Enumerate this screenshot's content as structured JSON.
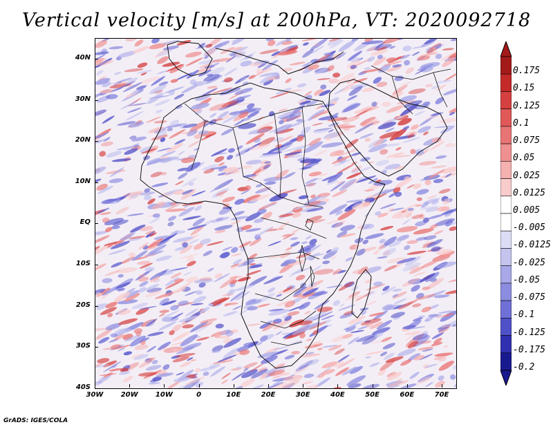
{
  "title": "Vertical velocity [m/s] at 200hPa, VT: 2020092718",
  "credit": "GrADS: IGES/COLA",
  "y_ticks": [
    "40N",
    "30N",
    "20N",
    "10N",
    "EQ",
    "10S",
    "20S",
    "30S",
    "40S"
  ],
  "x_ticks": [
    "30W",
    "20W",
    "10W",
    "0",
    "10E",
    "20E",
    "30E",
    "40E",
    "50E",
    "60E",
    "70E"
  ],
  "colorbar": {
    "levels": [
      "0.175",
      "0.15",
      "0.125",
      "0.1",
      "0.075",
      "0.05",
      "0.025",
      "0.0125",
      "0.005",
      "-0.005",
      "-0.0125",
      "-0.025",
      "-0.05",
      "-0.075",
      "-0.1",
      "-0.125",
      "-0.175",
      "-0.2"
    ],
    "colors": [
      "#a31a1a",
      "#c42a2a",
      "#d54040",
      "#e05858",
      "#e87474",
      "#ef9090",
      "#f5b0b0",
      "#f9cccc",
      "#ffffff",
      "#ffffff",
      "#dcdcf5",
      "#c4c4ef",
      "#a8a8e8",
      "#8c8ce0",
      "#7070d8",
      "#5050c8",
      "#3030b0",
      "#1a1a90"
    ],
    "top_arrow_color": "#a31a1a",
    "bottom_arrow_color": "#1a1a90"
  }
}
